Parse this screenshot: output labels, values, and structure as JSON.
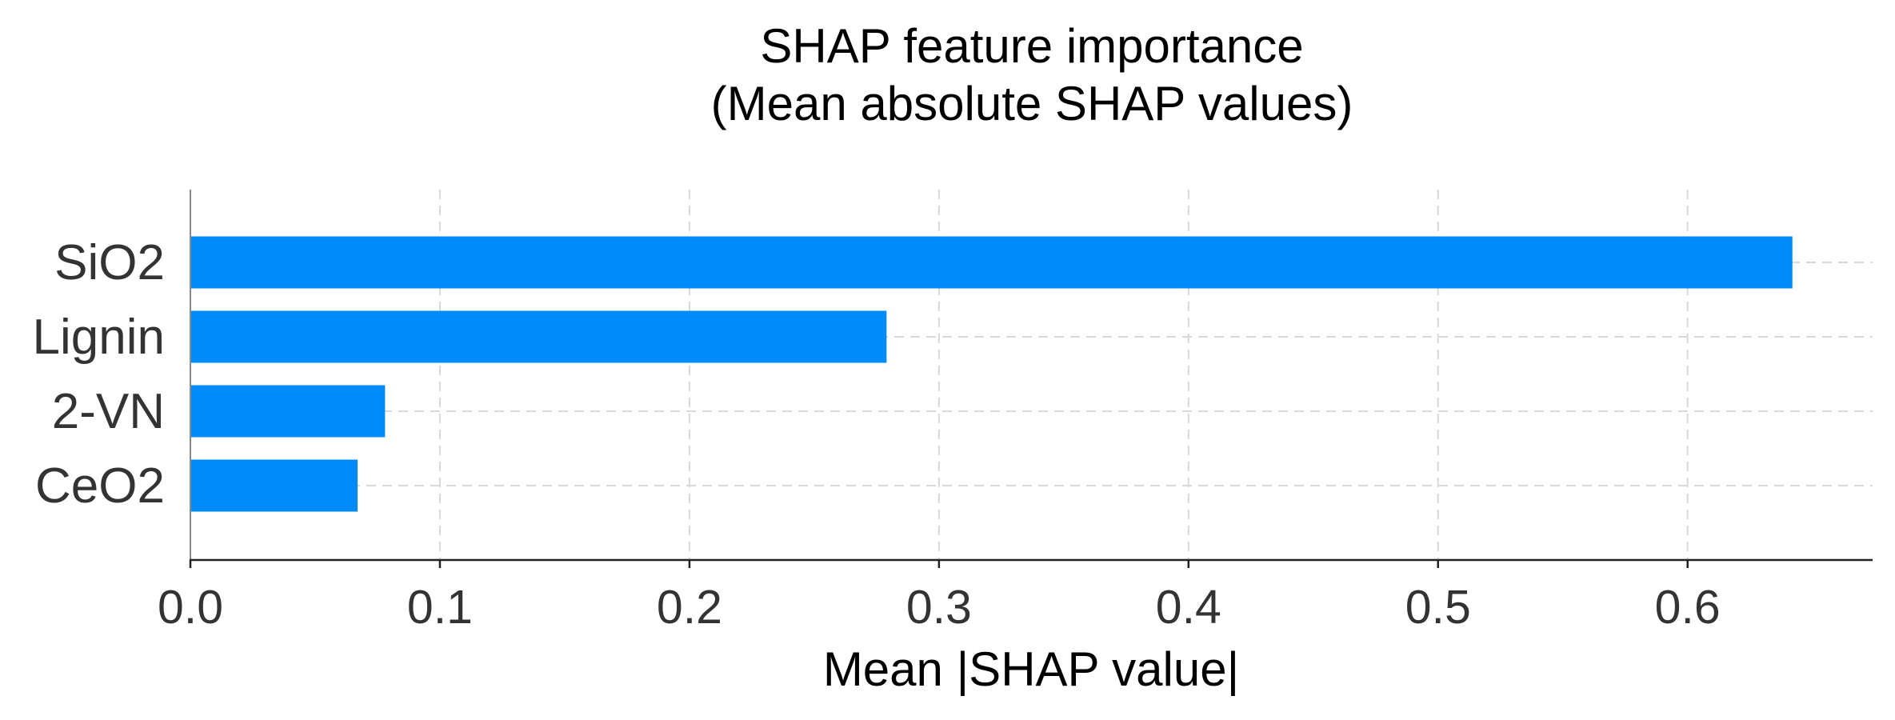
{
  "chart_data": {
    "type": "bar",
    "orientation": "horizontal",
    "title": "SHAP feature importance",
    "subtitle": "(Mean absolute SHAP values)",
    "categories": [
      "SiO2",
      "Lignin",
      "2-VN",
      "CeO2"
    ],
    "values": [
      0.642,
      0.279,
      0.078,
      0.067
    ],
    "xlabel": "Mean |SHAP value|",
    "ylabel": "",
    "xlim": [
      0,
      0.673
    ],
    "xticks": [
      0.0,
      0.1,
      0.2,
      0.3,
      0.4,
      0.5,
      0.6
    ],
    "xtick_labels": [
      "0.0",
      "0.1",
      "0.2",
      "0.3",
      "0.4",
      "0.5",
      "0.6"
    ],
    "grid": true,
    "bar_color": "#008bfb"
  }
}
